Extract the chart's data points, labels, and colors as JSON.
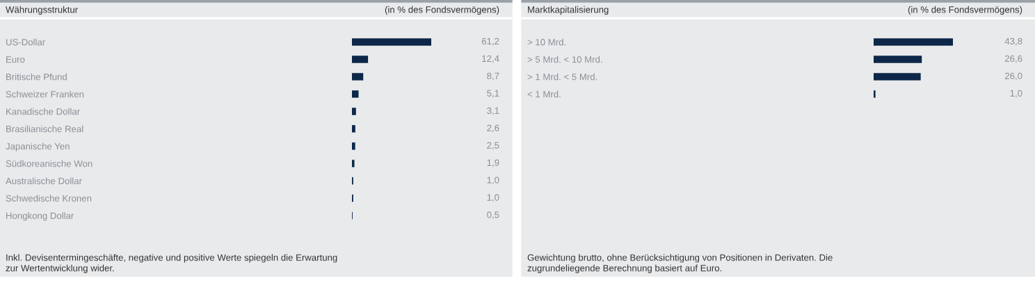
{
  "chart_data": [
    {
      "type": "bar",
      "orientation": "horizontal",
      "title": "Währungsstruktur",
      "subtitle": "(in % des Fondsvermögens)",
      "categories": [
        "US-Dollar",
        "Euro",
        "Britische Pfund",
        "Schweizer Franken",
        "Kanadische Dollar",
        "Brasilianische Real",
        "Japanische Yen",
        "Südkoreanische Won",
        "Australische Dollar",
        "Schwedische Kronen",
        "Hongkong Dollar"
      ],
      "values": [
        61.2,
        12.4,
        8.7,
        5.1,
        3.1,
        2.6,
        2.5,
        1.9,
        1.0,
        1.0,
        0.5
      ],
      "value_labels": [
        "61,2",
        "12,4",
        "8,7",
        "5,1",
        "3,1",
        "2,6",
        "2,5",
        "1,9",
        "1,0",
        "1,0",
        "0,5"
      ],
      "color": "#0c2748",
      "annotations": [
        "Inkl. Devisentermingeschäfte, negative und positive Werte spiegeln die Erwartung\nzur Wertentwicklung wider."
      ]
    },
    {
      "type": "bar",
      "orientation": "horizontal",
      "title": "Marktkapitalisierung",
      "subtitle": "(in % des Fondsvermögens)",
      "categories": [
        "> 10 Mrd.",
        "> 5 Mrd. < 10 Mrd.",
        "> 1 Mrd. < 5 Mrd.",
        "< 1 Mrd."
      ],
      "values": [
        43.8,
        26.6,
        26.0,
        1.0
      ],
      "value_labels": [
        "43,8",
        "26,6",
        "26,0",
        "1,0"
      ],
      "color": "#0c2748",
      "annotations": [
        "Gewichtung brutto, ohne Berücksichtigung von Positionen in Derivaten. Die\nzugrundeliegende Berechnung basiert auf Euro."
      ]
    }
  ]
}
